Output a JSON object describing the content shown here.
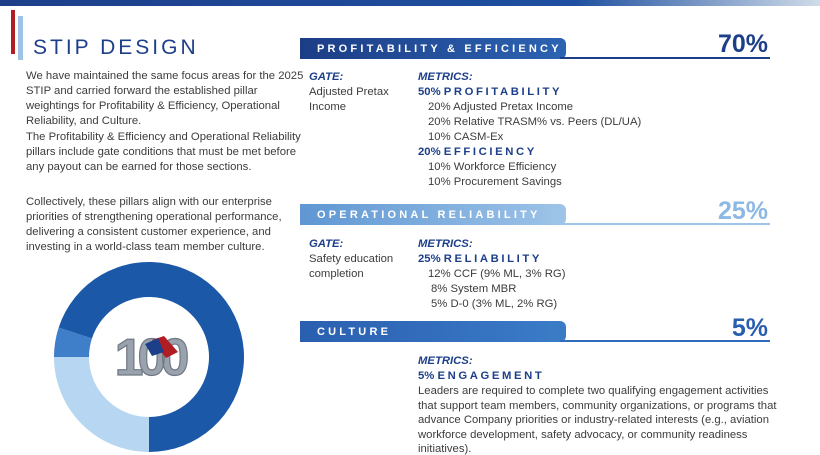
{
  "title": "STIP DESIGN",
  "intro": [
    "We have maintained the same focus areas for the 2025 STIP and carried forward the established pillar weightings for Profitability & Efficiency, Operational Reliability, and Culture.",
    "The Profitability & Efficiency and Operational Reliability pillars include gate conditions that must be met before any payout can be earned for those sections.",
    "Collectively, these pillars align with our enterprise priorities of strengthening operational performance, delivering a consistent customer experience, and investing in a world-class team member culture."
  ],
  "logo_text": "100",
  "donut": {
    "segments": [
      {
        "value": 70,
        "color": "#1b58a7"
      },
      {
        "value": 25,
        "color": "#b6d6f2"
      },
      {
        "value": 5,
        "color": "#3f7ec8"
      }
    ]
  },
  "pillars": [
    {
      "title": "PROFITABILITY & EFFICIENCY",
      "weight": "70%",
      "gate_label": "GATE:",
      "gate_text": "Adjusted Pretax Income",
      "metrics_label": "METRICS:",
      "groups": [
        {
          "pct": "50%",
          "name": "PROFITABILITY",
          "items": [
            "20% Adjusted Pretax Income",
            "20% Relative TRASM% vs. Peers (DL/UA)",
            "10% CASM-Ex"
          ]
        },
        {
          "pct": "20%",
          "name": "EFFICIENCY",
          "items": [
            "10% Workforce Efficiency",
            "10% Procurement Savings"
          ]
        }
      ]
    },
    {
      "title": "OPERATIONAL RELIABILITY",
      "weight": "25%",
      "gate_label": "GATE:",
      "gate_text": "Safety education completion",
      "metrics_label": "METRICS:",
      "groups": [
        {
          "pct": "25%",
          "name": "RELIABILITY",
          "items": [
            "12% CCF (9% ML, 3% RG)",
            "8% System MBR",
            "5% D-0 (3% ML, 2% RG)"
          ]
        }
      ]
    },
    {
      "title": "CULTURE",
      "weight": "5%",
      "metrics_label": "METRICS:",
      "groups": [
        {
          "pct": "5%",
          "name": "ENGAGEMENT",
          "items": []
        }
      ],
      "description": "Leaders are required to complete two qualifying engagement activities that support team members, community organizations, or programs that advance Company priorities or industry-related interests (e.g., aviation workforce development, safety advocacy, or community readiness initiatives)."
    }
  ]
}
